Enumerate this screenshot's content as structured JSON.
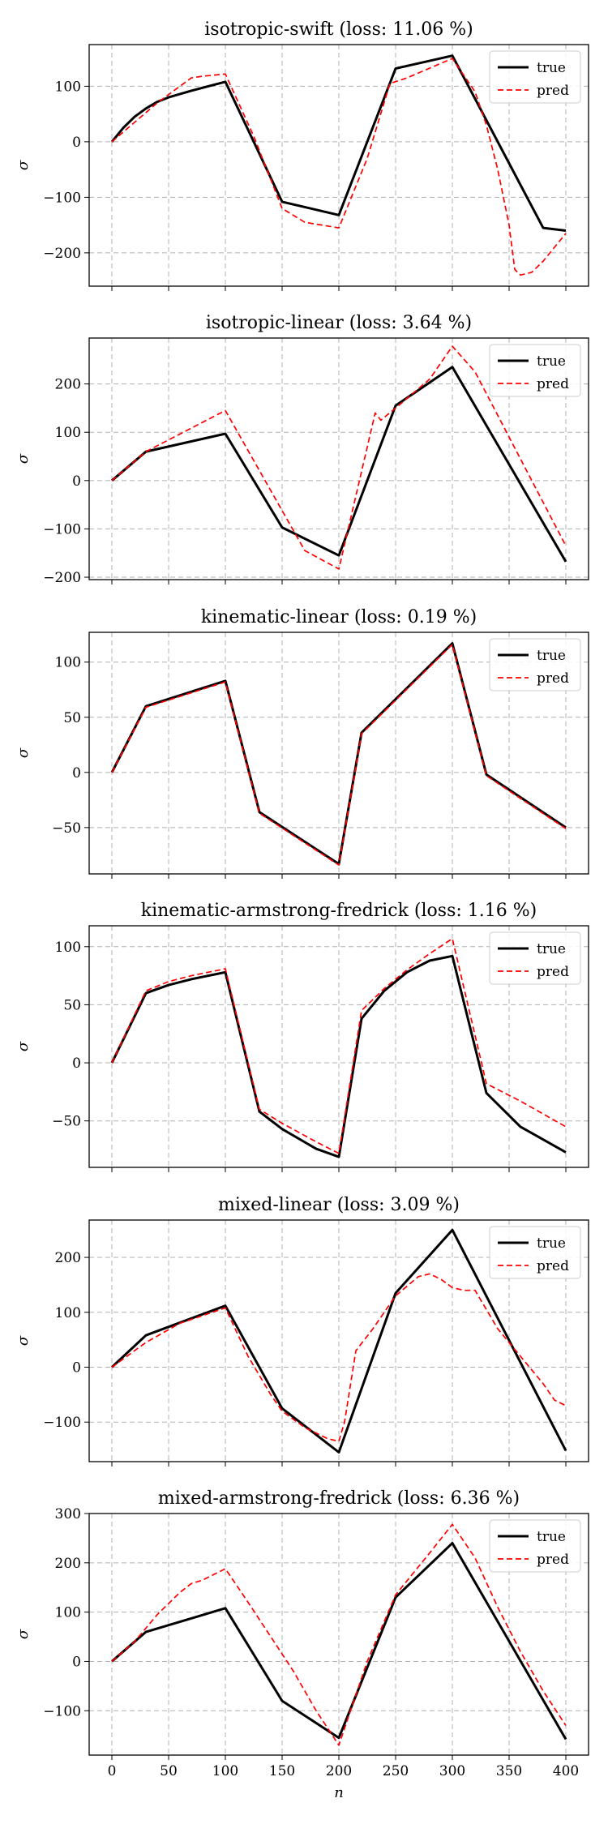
{
  "colors": {
    "true": "#000000",
    "pred": "#ff0000",
    "grid": "#b0b0b0"
  },
  "chart_data": [
    {
      "type": "line",
      "title": "isotropic-swift (loss: 11.06 %)",
      "xlabel": "",
      "ylabel": "σ",
      "xlim": [
        -20,
        420
      ],
      "ylim": [
        -260,
        175
      ],
      "xticks": [
        0,
        50,
        100,
        150,
        200,
        250,
        300,
        350,
        400
      ],
      "yticks": [
        -200,
        -100,
        0,
        100
      ],
      "grid": true,
      "legend": "top-right",
      "series": [
        {
          "name": "true",
          "style": "solid",
          "x": [
            0,
            10,
            20,
            30,
            40,
            50,
            70,
            100,
            150,
            200,
            250,
            300,
            380,
            400
          ],
          "y": [
            0,
            25,
            45,
            60,
            72,
            80,
            92,
            108,
            -108,
            -132,
            132,
            155,
            -155,
            -160
          ]
        },
        {
          "name": "pred",
          "style": "dashed",
          "x": [
            0,
            20,
            40,
            60,
            70,
            80,
            100,
            125,
            150,
            170,
            200,
            225,
            245,
            260,
            300,
            320,
            330,
            340,
            350,
            355,
            360,
            370,
            380,
            400
          ],
          "y": [
            0,
            35,
            70,
            100,
            115,
            118,
            122,
            10,
            -120,
            -145,
            -155,
            -30,
            105,
            115,
            150,
            90,
            30,
            -50,
            -150,
            -230,
            -240,
            -235,
            -215,
            -165
          ]
        }
      ]
    },
    {
      "type": "line",
      "title": "isotropic-linear (loss: 3.64 %)",
      "xlabel": "",
      "ylabel": "σ",
      "xlim": [
        -20,
        420
      ],
      "ylim": [
        -205,
        295
      ],
      "xticks": [
        0,
        50,
        100,
        150,
        200,
        250,
        300,
        350,
        400
      ],
      "yticks": [
        -200,
        -100,
        0,
        100,
        200
      ],
      "grid": true,
      "legend": "top-right",
      "series": [
        {
          "name": "true",
          "style": "solid",
          "x": [
            0,
            30,
            100,
            150,
            200,
            250,
            300,
            400
          ],
          "y": [
            0,
            60,
            97,
            -97,
            -155,
            155,
            235,
            -168
          ]
        },
        {
          "name": "pred",
          "style": "dashed",
          "x": [
            0,
            30,
            100,
            170,
            200,
            232,
            237,
            250,
            280,
            300,
            320,
            400
          ],
          "y": [
            0,
            60,
            145,
            -145,
            -183,
            140,
            125,
            150,
            210,
            278,
            225,
            -135
          ]
        }
      ]
    },
    {
      "type": "line",
      "title": "kinematic-linear (loss: 0.19 %)",
      "xlabel": "",
      "ylabel": "σ",
      "xlim": [
        -20,
        420
      ],
      "ylim": [
        -92,
        127
      ],
      "xticks": [
        0,
        50,
        100,
        150,
        200,
        250,
        300,
        350,
        400
      ],
      "yticks": [
        -50,
        0,
        50,
        100
      ],
      "grid": true,
      "legend": "top-right",
      "series": [
        {
          "name": "true",
          "style": "solid",
          "x": [
            0,
            30,
            100,
            130,
            200,
            220,
            300,
            330,
            400
          ],
          "y": [
            0,
            60,
            83,
            -36,
            -83,
            36,
            117,
            -2,
            -50
          ]
        },
        {
          "name": "pred",
          "style": "dashed",
          "x": [
            0,
            30,
            100,
            130,
            200,
            220,
            300,
            330,
            400
          ],
          "y": [
            0,
            59,
            82,
            -37,
            -84,
            35,
            116,
            -3,
            -51
          ]
        }
      ]
    },
    {
      "type": "line",
      "title": "kinematic-armstrong-fredrick (loss: 1.16 %)",
      "xlabel": "",
      "ylabel": "σ",
      "xlim": [
        -20,
        420
      ],
      "ylim": [
        -90,
        118
      ],
      "xticks": [
        0,
        50,
        100,
        150,
        200,
        250,
        300,
        350,
        400
      ],
      "yticks": [
        -50,
        0,
        50,
        100
      ],
      "grid": true,
      "legend": "top-right",
      "series": [
        {
          "name": "true",
          "style": "solid",
          "x": [
            0,
            30,
            50,
            70,
            100,
            130,
            150,
            180,
            200,
            220,
            240,
            260,
            280,
            300,
            330,
            360,
            400
          ],
          "y": [
            0,
            60,
            67,
            72,
            78,
            -42,
            -57,
            -74,
            -81,
            38,
            62,
            78,
            88,
            92,
            -26,
            -55,
            -77
          ]
        },
        {
          "name": "pred",
          "style": "dashed",
          "x": [
            0,
            30,
            50,
            70,
            100,
            130,
            150,
            180,
            200,
            220,
            240,
            260,
            280,
            300,
            330,
            360,
            400
          ],
          "y": [
            0,
            62,
            70,
            75,
            81,
            -40,
            -52,
            -68,
            -78,
            45,
            64,
            80,
            94,
            107,
            -18,
            -33,
            -55
          ]
        }
      ]
    },
    {
      "type": "line",
      "title": "mixed-linear (loss: 3.09 %)",
      "xlabel": "",
      "ylabel": "σ",
      "xlim": [
        -20,
        420
      ],
      "ylim": [
        -172,
        268
      ],
      "xticks": [
        0,
        50,
        100,
        150,
        200,
        250,
        300,
        350,
        400
      ],
      "yticks": [
        -100,
        0,
        100,
        200
      ],
      "grid": true,
      "legend": "top-right",
      "series": [
        {
          "name": "true",
          "style": "solid",
          "x": [
            0,
            30,
            100,
            150,
            200,
            250,
            300,
            400
          ],
          "y": [
            0,
            58,
            112,
            -75,
            -155,
            135,
            250,
            -152
          ]
        },
        {
          "name": "pred",
          "style": "dashed",
          "x": [
            0,
            30,
            60,
            100,
            120,
            140,
            150,
            170,
            190,
            200,
            205,
            215,
            230,
            250,
            270,
            280,
            290,
            300,
            310,
            320,
            340,
            360,
            380,
            390,
            400
          ],
          "y": [
            0,
            45,
            80,
            108,
            20,
            -50,
            -80,
            -110,
            -130,
            -135,
            -100,
            30,
            70,
            130,
            165,
            170,
            160,
            145,
            140,
            140,
            70,
            20,
            -30,
            -60,
            -70
          ]
        }
      ]
    },
    {
      "type": "line",
      "title": "mixed-armstrong-fredrick (loss: 6.36 %)",
      "xlabel": "n",
      "ylabel": "σ",
      "xlim": [
        -20,
        420
      ],
      "ylim": [
        -190,
        300
      ],
      "xticks": [
        0,
        50,
        100,
        150,
        200,
        250,
        300,
        350,
        400
      ],
      "yticks": [
        -100,
        0,
        100,
        200,
        300
      ],
      "grid": true,
      "legend": "top-right",
      "series": [
        {
          "name": "true",
          "style": "solid",
          "x": [
            0,
            30,
            100,
            150,
            200,
            250,
            300,
            400
          ],
          "y": [
            0,
            60,
            108,
            -80,
            -155,
            130,
            240,
            -158
          ]
        },
        {
          "name": "pred",
          "style": "dashed",
          "x": [
            0,
            20,
            40,
            60,
            70,
            80,
            100,
            120,
            140,
            160,
            180,
            200,
            225,
            250,
            280,
            300,
            320,
            340,
            360,
            380,
            400
          ],
          "y": [
            0,
            40,
            95,
            140,
            158,
            165,
            188,
            120,
            50,
            -20,
            -100,
            -170,
            0,
            135,
            220,
            278,
            210,
            110,
            20,
            -60,
            -130
          ]
        }
      ]
    }
  ]
}
